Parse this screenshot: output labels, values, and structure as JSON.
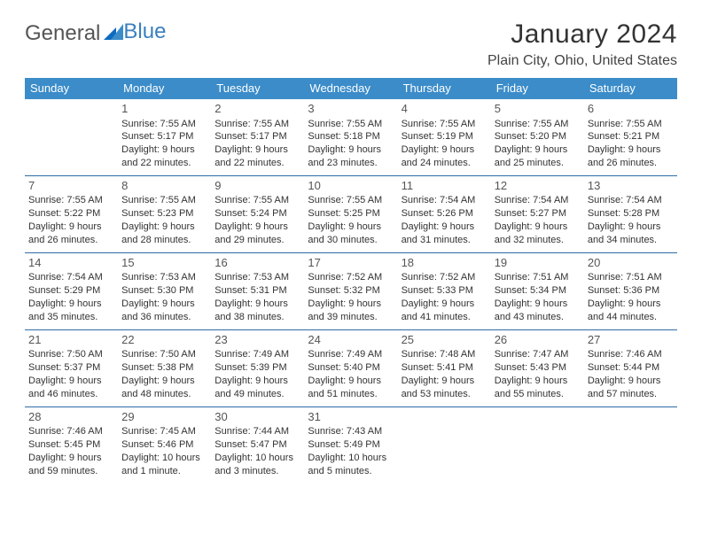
{
  "logo": {
    "text_a": "General",
    "text_b": "Blue"
  },
  "title": "January 2024",
  "location": "Plain City, Ohio, United States",
  "weekdays": [
    "Sunday",
    "Monday",
    "Tuesday",
    "Wednesday",
    "Thursday",
    "Friday",
    "Saturday"
  ],
  "colors": {
    "header_bg": "#3b8cc9",
    "header_text": "#ffffff",
    "rule": "#2f6da5",
    "logo_blue": "#3b7fbf"
  },
  "weeks": [
    [
      {
        "n": "",
        "l1": "",
        "l2": "",
        "l3": "",
        "l4": ""
      },
      {
        "n": "1",
        "l1": "Sunrise: 7:55 AM",
        "l2": "Sunset: 5:17 PM",
        "l3": "Daylight: 9 hours",
        "l4": "and 22 minutes."
      },
      {
        "n": "2",
        "l1": "Sunrise: 7:55 AM",
        "l2": "Sunset: 5:17 PM",
        "l3": "Daylight: 9 hours",
        "l4": "and 22 minutes."
      },
      {
        "n": "3",
        "l1": "Sunrise: 7:55 AM",
        "l2": "Sunset: 5:18 PM",
        "l3": "Daylight: 9 hours",
        "l4": "and 23 minutes."
      },
      {
        "n": "4",
        "l1": "Sunrise: 7:55 AM",
        "l2": "Sunset: 5:19 PM",
        "l3": "Daylight: 9 hours",
        "l4": "and 24 minutes."
      },
      {
        "n": "5",
        "l1": "Sunrise: 7:55 AM",
        "l2": "Sunset: 5:20 PM",
        "l3": "Daylight: 9 hours",
        "l4": "and 25 minutes."
      },
      {
        "n": "6",
        "l1": "Sunrise: 7:55 AM",
        "l2": "Sunset: 5:21 PM",
        "l3": "Daylight: 9 hours",
        "l4": "and 26 minutes."
      }
    ],
    [
      {
        "n": "7",
        "l1": "Sunrise: 7:55 AM",
        "l2": "Sunset: 5:22 PM",
        "l3": "Daylight: 9 hours",
        "l4": "and 26 minutes."
      },
      {
        "n": "8",
        "l1": "Sunrise: 7:55 AM",
        "l2": "Sunset: 5:23 PM",
        "l3": "Daylight: 9 hours",
        "l4": "and 28 minutes."
      },
      {
        "n": "9",
        "l1": "Sunrise: 7:55 AM",
        "l2": "Sunset: 5:24 PM",
        "l3": "Daylight: 9 hours",
        "l4": "and 29 minutes."
      },
      {
        "n": "10",
        "l1": "Sunrise: 7:55 AM",
        "l2": "Sunset: 5:25 PM",
        "l3": "Daylight: 9 hours",
        "l4": "and 30 minutes."
      },
      {
        "n": "11",
        "l1": "Sunrise: 7:54 AM",
        "l2": "Sunset: 5:26 PM",
        "l3": "Daylight: 9 hours",
        "l4": "and 31 minutes."
      },
      {
        "n": "12",
        "l1": "Sunrise: 7:54 AM",
        "l2": "Sunset: 5:27 PM",
        "l3": "Daylight: 9 hours",
        "l4": "and 32 minutes."
      },
      {
        "n": "13",
        "l1": "Sunrise: 7:54 AM",
        "l2": "Sunset: 5:28 PM",
        "l3": "Daylight: 9 hours",
        "l4": "and 34 minutes."
      }
    ],
    [
      {
        "n": "14",
        "l1": "Sunrise: 7:54 AM",
        "l2": "Sunset: 5:29 PM",
        "l3": "Daylight: 9 hours",
        "l4": "and 35 minutes."
      },
      {
        "n": "15",
        "l1": "Sunrise: 7:53 AM",
        "l2": "Sunset: 5:30 PM",
        "l3": "Daylight: 9 hours",
        "l4": "and 36 minutes."
      },
      {
        "n": "16",
        "l1": "Sunrise: 7:53 AM",
        "l2": "Sunset: 5:31 PM",
        "l3": "Daylight: 9 hours",
        "l4": "and 38 minutes."
      },
      {
        "n": "17",
        "l1": "Sunrise: 7:52 AM",
        "l2": "Sunset: 5:32 PM",
        "l3": "Daylight: 9 hours",
        "l4": "and 39 minutes."
      },
      {
        "n": "18",
        "l1": "Sunrise: 7:52 AM",
        "l2": "Sunset: 5:33 PM",
        "l3": "Daylight: 9 hours",
        "l4": "and 41 minutes."
      },
      {
        "n": "19",
        "l1": "Sunrise: 7:51 AM",
        "l2": "Sunset: 5:34 PM",
        "l3": "Daylight: 9 hours",
        "l4": "and 43 minutes."
      },
      {
        "n": "20",
        "l1": "Sunrise: 7:51 AM",
        "l2": "Sunset: 5:36 PM",
        "l3": "Daylight: 9 hours",
        "l4": "and 44 minutes."
      }
    ],
    [
      {
        "n": "21",
        "l1": "Sunrise: 7:50 AM",
        "l2": "Sunset: 5:37 PM",
        "l3": "Daylight: 9 hours",
        "l4": "and 46 minutes."
      },
      {
        "n": "22",
        "l1": "Sunrise: 7:50 AM",
        "l2": "Sunset: 5:38 PM",
        "l3": "Daylight: 9 hours",
        "l4": "and 48 minutes."
      },
      {
        "n": "23",
        "l1": "Sunrise: 7:49 AM",
        "l2": "Sunset: 5:39 PM",
        "l3": "Daylight: 9 hours",
        "l4": "and 49 minutes."
      },
      {
        "n": "24",
        "l1": "Sunrise: 7:49 AM",
        "l2": "Sunset: 5:40 PM",
        "l3": "Daylight: 9 hours",
        "l4": "and 51 minutes."
      },
      {
        "n": "25",
        "l1": "Sunrise: 7:48 AM",
        "l2": "Sunset: 5:41 PM",
        "l3": "Daylight: 9 hours",
        "l4": "and 53 minutes."
      },
      {
        "n": "26",
        "l1": "Sunrise: 7:47 AM",
        "l2": "Sunset: 5:43 PM",
        "l3": "Daylight: 9 hours",
        "l4": "and 55 minutes."
      },
      {
        "n": "27",
        "l1": "Sunrise: 7:46 AM",
        "l2": "Sunset: 5:44 PM",
        "l3": "Daylight: 9 hours",
        "l4": "and 57 minutes."
      }
    ],
    [
      {
        "n": "28",
        "l1": "Sunrise: 7:46 AM",
        "l2": "Sunset: 5:45 PM",
        "l3": "Daylight: 9 hours",
        "l4": "and 59 minutes."
      },
      {
        "n": "29",
        "l1": "Sunrise: 7:45 AM",
        "l2": "Sunset: 5:46 PM",
        "l3": "Daylight: 10 hours",
        "l4": "and 1 minute."
      },
      {
        "n": "30",
        "l1": "Sunrise: 7:44 AM",
        "l2": "Sunset: 5:47 PM",
        "l3": "Daylight: 10 hours",
        "l4": "and 3 minutes."
      },
      {
        "n": "31",
        "l1": "Sunrise: 7:43 AM",
        "l2": "Sunset: 5:49 PM",
        "l3": "Daylight: 10 hours",
        "l4": "and 5 minutes."
      },
      {
        "n": "",
        "l1": "",
        "l2": "",
        "l3": "",
        "l4": ""
      },
      {
        "n": "",
        "l1": "",
        "l2": "",
        "l3": "",
        "l4": ""
      },
      {
        "n": "",
        "l1": "",
        "l2": "",
        "l3": "",
        "l4": ""
      }
    ]
  ]
}
